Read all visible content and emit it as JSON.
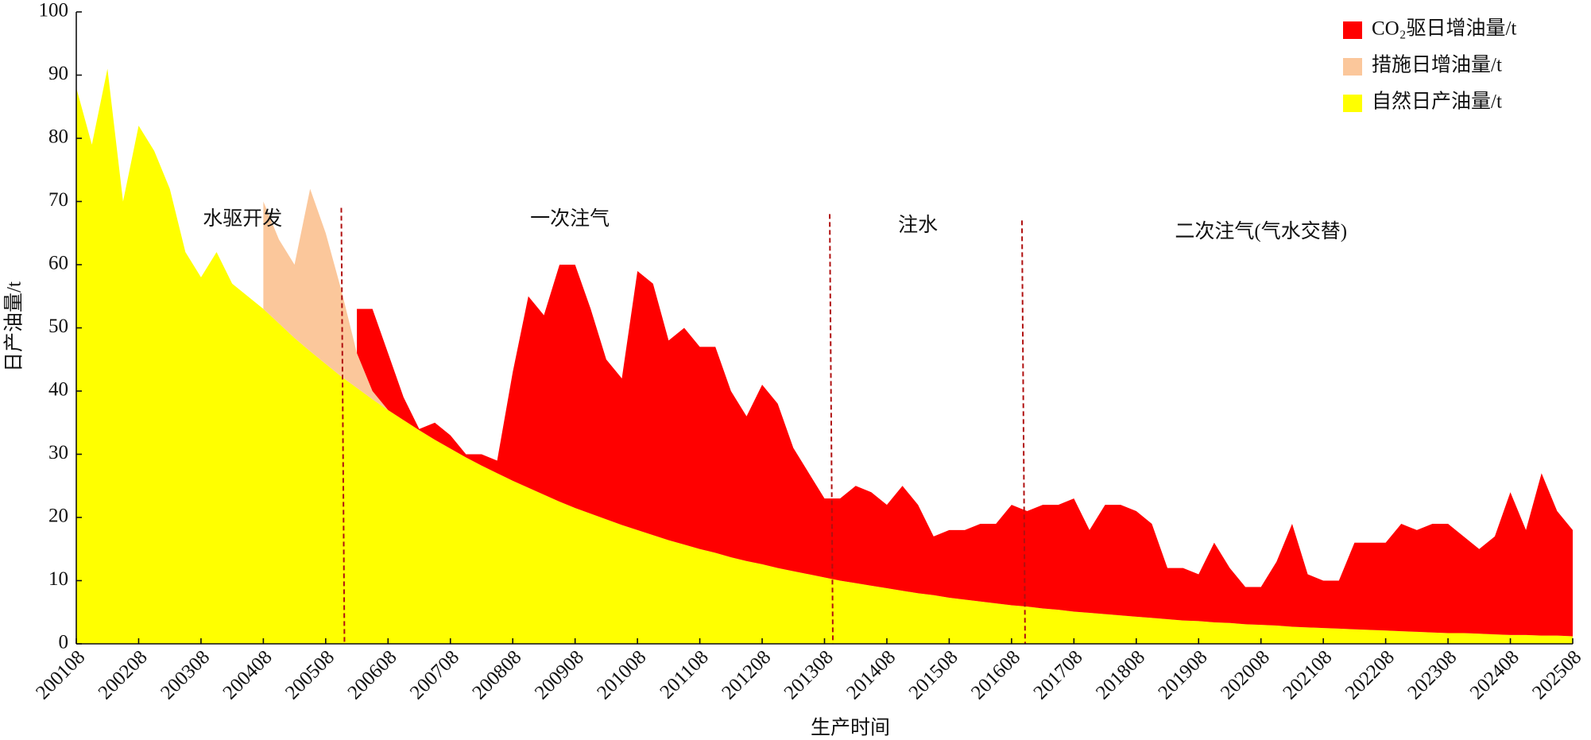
{
  "chart_data": {
    "type": "stacked_area",
    "xlabel": "生产时间",
    "ylabel": "日产油量/t",
    "x": [
      "200108",
      "200111",
      "200202",
      "200205",
      "200208",
      "200211",
      "200302",
      "200305",
      "200308",
      "200311",
      "200402",
      "200405",
      "200408",
      "200411",
      "200502",
      "200505",
      "200508",
      "200511",
      "200602",
      "200605",
      "200608",
      "200611",
      "200702",
      "200705",
      "200708",
      "200711",
      "200802",
      "200805",
      "200808",
      "200811",
      "200902",
      "200905",
      "200908",
      "200911",
      "201002",
      "201005",
      "201008",
      "201011",
      "201102",
      "201105",
      "201108",
      "201111",
      "201202",
      "201205",
      "201208",
      "201211",
      "201302",
      "201305",
      "201308",
      "201311",
      "201402",
      "201405",
      "201408",
      "201411",
      "201502",
      "201505",
      "201508",
      "201511",
      "201602",
      "201605",
      "201608",
      "201611",
      "201702",
      "201705",
      "201708",
      "201711",
      "201802",
      "201805",
      "201808",
      "201811",
      "201902",
      "201905",
      "201908",
      "201911",
      "202002",
      "202005",
      "202008",
      "202011",
      "202102",
      "202105",
      "202108",
      "202111",
      "202202",
      "202205",
      "202208",
      "202211",
      "202302",
      "202305",
      "202308",
      "202311",
      "202402",
      "202405",
      "202408",
      "202411",
      "202502",
      "202505",
      "202508"
    ],
    "series": [
      {
        "name": "自然日产油量/t",
        "color": "#ffff00",
        "values": [
          88,
          79,
          91,
          70,
          82,
          78,
          72,
          62,
          58,
          62,
          57,
          55,
          53.0,
          50.7,
          48.4,
          46.3,
          44.3,
          42.3,
          40.5,
          38.7,
          37.0,
          35.4,
          33.8,
          32.3,
          30.9,
          29.5,
          28.2,
          27.0,
          25.8,
          24.7,
          23.6,
          22.5,
          21.5,
          20.6,
          19.7,
          18.8,
          18.0,
          17.2,
          16.4,
          15.7,
          15.0,
          14.4,
          13.7,
          13.1,
          12.6,
          12.0,
          11.5,
          11.0,
          10.5,
          10.0,
          9.6,
          9.2,
          8.8,
          8.4,
          8.0,
          7.7,
          7.3,
          7.0,
          6.7,
          6.4,
          6.1,
          5.9,
          5.6,
          5.4,
          5.1,
          4.9,
          4.7,
          4.5,
          4.3,
          4.1,
          3.9,
          3.7,
          3.6,
          3.4,
          3.3,
          3.1,
          3.0,
          2.9,
          2.7,
          2.6,
          2.5,
          2.4,
          2.3,
          2.2,
          2.1,
          2.0,
          1.9,
          1.8,
          1.7,
          1.7,
          1.6,
          1.5,
          1.4,
          1.4,
          1.3,
          1.3,
          1.2
        ]
      },
      {
        "name": "措施日增油量/t",
        "color": "#fbc79b",
        "values": [
          null,
          null,
          null,
          null,
          null,
          null,
          null,
          null,
          null,
          null,
          null,
          null,
          17.0,
          13.3,
          11.6,
          25.7,
          20.7,
          13.7,
          5.5,
          1.3,
          0,
          null,
          null,
          null,
          null,
          null,
          null,
          null,
          null,
          null,
          null,
          null,
          null,
          null,
          null,
          null,
          null,
          null,
          null,
          null,
          null,
          null,
          null,
          null,
          null,
          null,
          null,
          null,
          null,
          null,
          null,
          null,
          null,
          null,
          null,
          null,
          null,
          null,
          null,
          null,
          null,
          null,
          null,
          null,
          null,
          null,
          null,
          null,
          null,
          null,
          null,
          null,
          null,
          null,
          null,
          null,
          null,
          null,
          null,
          null,
          null,
          null,
          null,
          null,
          null,
          null,
          null,
          null,
          null,
          null,
          null,
          null,
          null,
          null,
          null,
          null,
          null
        ]
      },
      {
        "name": "CO₂驱日增油量/t",
        "color": "#ff0000",
        "values": [
          null,
          null,
          null,
          null,
          null,
          null,
          null,
          null,
          null,
          null,
          null,
          null,
          null,
          null,
          null,
          null,
          null,
          null,
          7.0,
          13.0,
          9.0,
          3.6,
          0.2,
          2.7,
          2.1,
          0.5,
          1.8,
          2.0,
          17.2,
          30.3,
          28.4,
          37.5,
          38.5,
          32.4,
          25.3,
          23.2,
          41.0,
          39.8,
          31.6,
          34.3,
          32.0,
          32.6,
          26.3,
          22.9,
          28.4,
          26.0,
          19.5,
          16.0,
          12.5,
          13.0,
          15.4,
          14.8,
          13.2,
          16.6,
          14.0,
          9.3,
          10.7,
          11.0,
          12.3,
          12.6,
          15.9,
          15.1,
          16.4,
          16.6,
          17.9,
          13.1,
          17.3,
          17.5,
          16.7,
          14.9,
          8.1,
          8.3,
          7.4,
          12.6,
          8.7,
          5.9,
          6.0,
          10.1,
          16.3,
          8.4,
          7.5,
          7.6,
          13.7,
          13.8,
          13.9,
          17.0,
          16.1,
          17.2,
          17.3,
          15.3,
          13.4,
          15.5,
          22.6,
          16.6,
          25.7,
          19.7,
          16.8
        ]
      }
    ],
    "xlim": [
      "200108",
      "202508"
    ],
    "xticks": [
      "200108",
      "200208",
      "200308",
      "200408",
      "200508",
      "200608",
      "200708",
      "200808",
      "200908",
      "201008",
      "201108",
      "201208",
      "201308",
      "201408",
      "201508",
      "201608",
      "201708",
      "201808",
      "201908",
      "202008",
      "202108",
      "202208",
      "202308",
      "202408",
      "202508"
    ],
    "ylim": [
      0,
      100
    ],
    "yticks": [
      0,
      10,
      20,
      30,
      40,
      50,
      60,
      70,
      80,
      90,
      100
    ],
    "legend": "upper right",
    "dividers": [
      "200511",
      "201309",
      "201610"
    ],
    "divider_color": "#b01010",
    "annotations": [
      {
        "text": "水驱开发",
        "x": "200404",
        "y": 67
      },
      {
        "text": "一次注气",
        "x": "200907",
        "y": 67
      },
      {
        "text": "注水",
        "x": "201502",
        "y": 66
      },
      {
        "text": "二次注气(气水交替)",
        "x": "202008",
        "y": 65
      }
    ]
  }
}
